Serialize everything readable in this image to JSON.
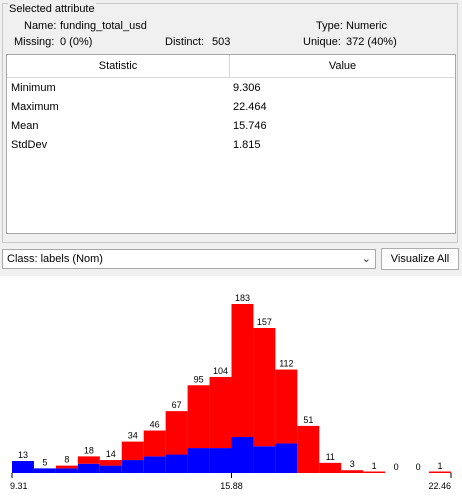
{
  "selected_attribute": {
    "title": "Selected attribute",
    "name_label": "Name:",
    "name_value": "funding_total_usd",
    "type_label": "Type:",
    "type_value": "Numeric",
    "missing_label": "Missing:",
    "missing_value": "0 (0%)",
    "distinct_label": "Distinct:",
    "distinct_value": "503",
    "unique_label": "Unique:",
    "unique_value": "372 (40%)"
  },
  "stats_table": {
    "headers": [
      "Statistic",
      "Value"
    ],
    "rows": [
      {
        "statistic": "Minimum",
        "value": "9.306"
      },
      {
        "statistic": "Maximum",
        "value": "22.464"
      },
      {
        "statistic": "Mean",
        "value": "15.746"
      },
      {
        "statistic": "StdDev",
        "value": "1.815"
      }
    ]
  },
  "class_select": {
    "value": "Class: labels (Nom)"
  },
  "visualize_all_label": "Visualize All",
  "colors": {
    "class_a": "#ff0000",
    "class_b": "#0000ff"
  },
  "chart_data": {
    "type": "bar",
    "stacked": true,
    "x_tick_labels": [
      "9.31",
      "15.88",
      "22.46"
    ],
    "xlim": [
      9.306,
      22.464
    ],
    "ylim": [
      0,
      183
    ],
    "bin_totals": [
      13,
      5,
      8,
      18,
      14,
      34,
      46,
      67,
      95,
      104,
      183,
      157,
      112,
      51,
      11,
      3,
      1,
      0,
      0,
      1
    ],
    "series": [
      {
        "values": [
          13,
          5,
          5,
          10,
          8,
          14,
          18,
          20,
          27,
          27,
          39,
          29,
          32,
          0,
          0,
          0,
          0,
          0,
          0,
          0
        ]
      },
      {
        "values": [
          0,
          0,
          3,
          8,
          6,
          20,
          28,
          47,
          68,
          77,
          144,
          128,
          80,
          51,
          11,
          3,
          1,
          0,
          0,
          1
        ]
      }
    ]
  }
}
